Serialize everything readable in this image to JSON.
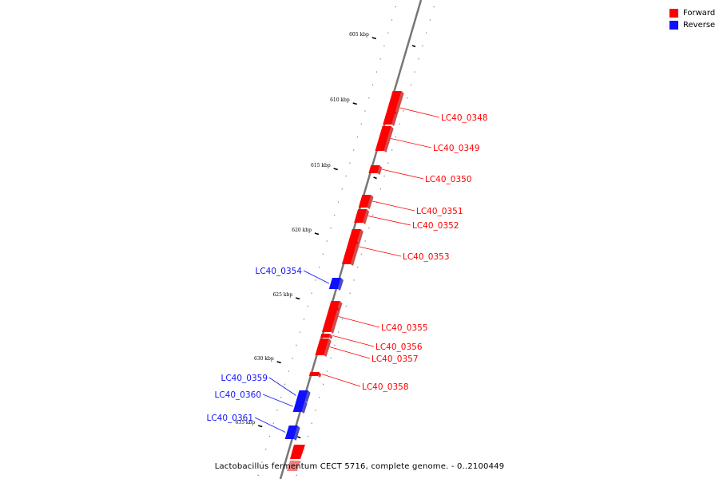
{
  "legend": {
    "forward_label": "Forward",
    "reverse_label": "Reverse",
    "forward_color": "#ff0000",
    "reverse_color": "#1010ff"
  },
  "caption": "Lactobacillus fermentum CECT 5716, complete genome. - 0..2100449",
  "genome_axis": {
    "tick_labels": [
      "605 kbp",
      "610 kbp",
      "615 kbp",
      "620 kbp",
      "625 kbp",
      "630 kbp",
      "635 kbp"
    ]
  },
  "genes": [
    {
      "name": "LC40_0348",
      "strand": "Forward"
    },
    {
      "name": "LC40_0349",
      "strand": "Forward"
    },
    {
      "name": "LC40_0350",
      "strand": "Forward"
    },
    {
      "name": "LC40_0351",
      "strand": "Forward"
    },
    {
      "name": "LC40_0352",
      "strand": "Forward"
    },
    {
      "name": "LC40_0353",
      "strand": "Forward"
    },
    {
      "name": "LC40_0354",
      "strand": "Reverse"
    },
    {
      "name": "LC40_0355",
      "strand": "Forward"
    },
    {
      "name": "LC40_0356",
      "strand": "Forward"
    },
    {
      "name": "LC40_0357",
      "strand": "Forward"
    },
    {
      "name": "LC40_0358",
      "strand": "Forward"
    },
    {
      "name": "LC40_0359",
      "strand": "Reverse"
    },
    {
      "name": "LC40_0360",
      "strand": "Reverse"
    },
    {
      "name": "LC40_0361",
      "strand": "Reverse"
    }
  ]
}
